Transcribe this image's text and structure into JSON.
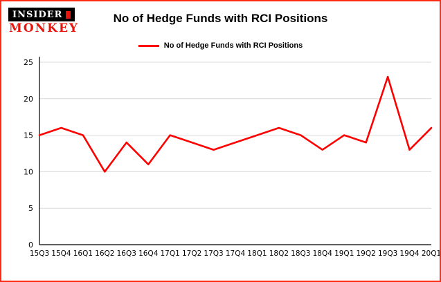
{
  "logo": {
    "line1": "INSIDER",
    "line2": "MONKEY"
  },
  "colors": {
    "line": "#fe0000",
    "border": "#fd2c12",
    "grid": "#d9d9d9",
    "axis": "#000000",
    "logo_red": "#e8150d"
  },
  "chart_data": {
    "type": "line",
    "title": "No of Hedge Funds with RCI Positions",
    "legend": "No of Hedge Funds with RCI Positions",
    "categories": [
      "15Q3",
      "15Q4",
      "16Q1",
      "16Q2",
      "16Q3",
      "16Q4",
      "17Q1",
      "17Q2",
      "17Q3",
      "17Q4",
      "18Q1",
      "18Q2",
      "18Q3",
      "18Q4",
      "19Q1",
      "19Q2",
      "19Q3",
      "19Q4",
      "20Q1"
    ],
    "series": [
      {
        "name": "No of Hedge Funds with RCI Positions",
        "color": "#fe0000",
        "values": [
          15,
          16,
          15,
          10,
          14,
          11,
          15,
          14,
          13,
          14,
          15,
          16,
          15,
          13,
          15,
          14,
          23,
          13,
          16
        ]
      }
    ],
    "xlabel": "",
    "ylabel": "",
    "ylim": [
      0,
      25
    ],
    "yticks": [
      0,
      5,
      10,
      15,
      20,
      25
    ],
    "grid": true,
    "legend_position": "top-center"
  }
}
